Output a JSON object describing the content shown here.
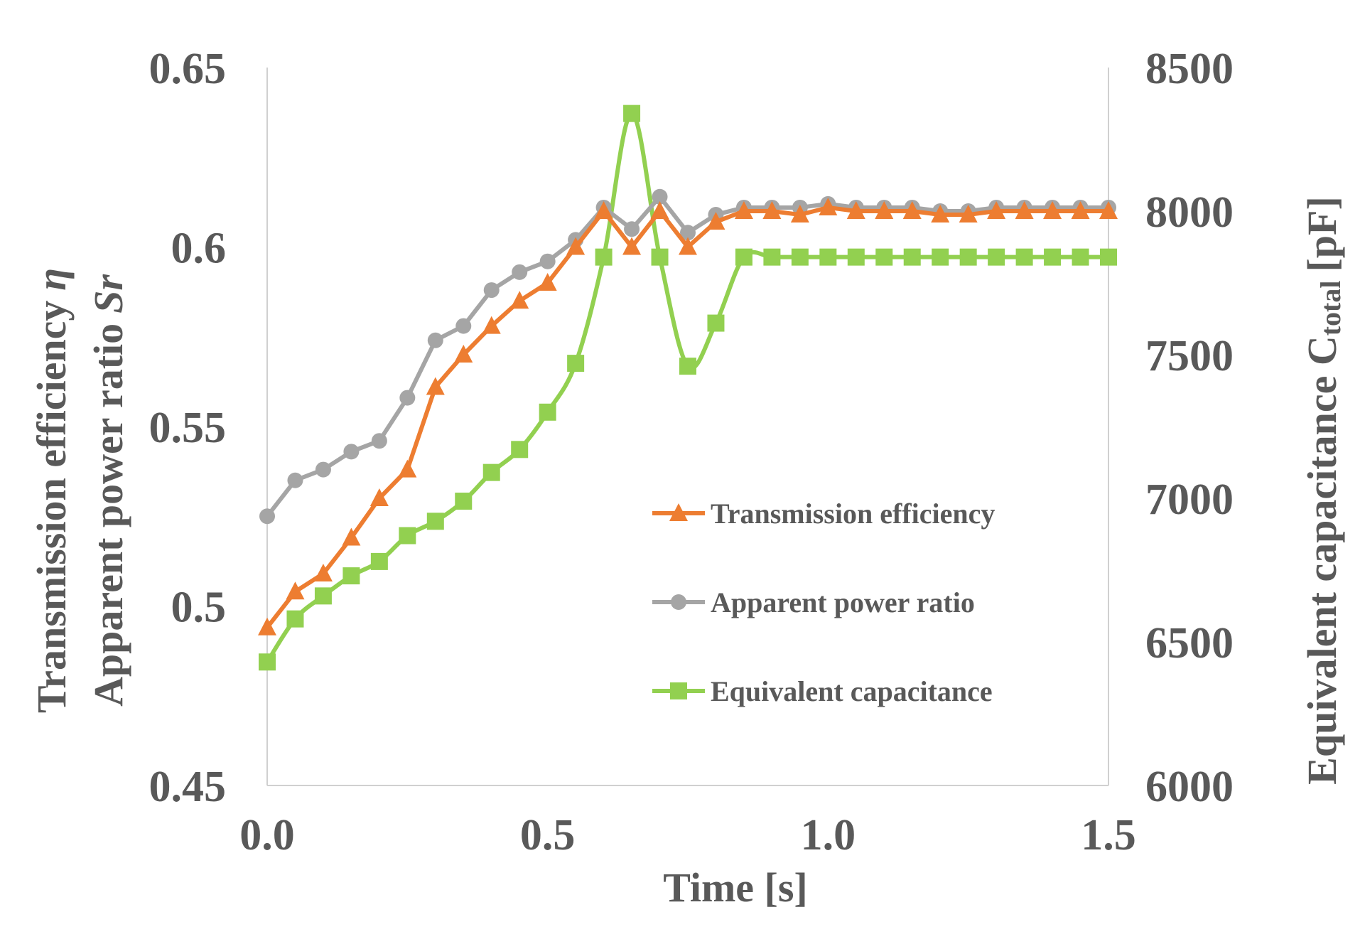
{
  "chart_data": {
    "type": "line",
    "title": "",
    "xlabel": "Time  [s]",
    "ylabel_left_line1": "Transmission efficiency",
    "ylabel_left_line1_symbol": "η",
    "ylabel_left_line2": "Apparent power ratio",
    "ylabel_left_line2_symbol": "Sr",
    "ylabel_right_main": "Equivalent capacitance C",
    "ylabel_right_sub": "total",
    "ylabel_right_unit": "[pF]",
    "xlim": [
      0.0,
      1.5
    ],
    "ylim_left": [
      0.45,
      0.65
    ],
    "ylim_right": [
      6000,
      8500
    ],
    "x_ticks": [
      "0.0",
      "0.5",
      "1.0",
      "1.5"
    ],
    "x_tick_values": [
      0.0,
      0.5,
      1.0,
      1.5
    ],
    "y_left_ticks": [
      "0.45",
      "0.5",
      "0.55",
      "0.6",
      "0.65"
    ],
    "y_left_tick_values": [
      0.45,
      0.5,
      0.55,
      0.6,
      0.65
    ],
    "y_right_ticks": [
      "6000",
      "6500",
      "7000",
      "7500",
      "8000",
      "8500"
    ],
    "y_right_tick_values": [
      6000,
      6500,
      7000,
      7500,
      8000,
      8500
    ],
    "grid": false,
    "legend_position": "center-right",
    "x": [
      0.0,
      0.05,
      0.1,
      0.15,
      0.2,
      0.25,
      0.3,
      0.35,
      0.4,
      0.45,
      0.5,
      0.55,
      0.6,
      0.65,
      0.7,
      0.75,
      0.8,
      0.85,
      0.9,
      0.95,
      1.0,
      1.05,
      1.1,
      1.15,
      1.2,
      1.25,
      1.3,
      1.35,
      1.4,
      1.45,
      1.5
    ],
    "series": [
      {
        "name": "Transmission efficiency",
        "axis": "left",
        "color": "#ED7D31",
        "marker": "triangle",
        "values": [
          0.494,
          0.504,
          0.509,
          0.519,
          0.53,
          0.538,
          0.561,
          0.57,
          0.578,
          0.585,
          0.59,
          0.6,
          0.61,
          0.6,
          0.61,
          0.6,
          0.607,
          0.61,
          0.61,
          0.609,
          0.611,
          0.61,
          0.61,
          0.61,
          0.609,
          0.609,
          0.61,
          0.61,
          0.61,
          0.61,
          0.61
        ]
      },
      {
        "name": "Apparent power ratio",
        "axis": "left",
        "color": "#A5A5A5",
        "marker": "circle",
        "values": [
          0.525,
          0.535,
          0.538,
          0.543,
          0.546,
          0.558,
          0.574,
          0.578,
          0.588,
          0.593,
          0.596,
          0.602,
          0.611,
          0.605,
          0.614,
          0.604,
          0.609,
          0.611,
          0.611,
          0.611,
          0.612,
          0.611,
          0.611,
          0.611,
          0.61,
          0.61,
          0.611,
          0.611,
          0.611,
          0.611,
          0.611
        ]
      },
      {
        "name": "Equivalent capacitance",
        "axis": "right",
        "color": "#92D050",
        "marker": "square",
        "values": [
          6430,
          6580,
          6660,
          6730,
          6780,
          6870,
          6920,
          6990,
          7090,
          7170,
          7300,
          7470,
          7840,
          8340,
          7840,
          7460,
          7610,
          7840,
          7840,
          7840,
          7840,
          7840,
          7840,
          7840,
          7840,
          7840,
          7840,
          7840,
          7840,
          7840,
          7840
        ]
      }
    ]
  }
}
